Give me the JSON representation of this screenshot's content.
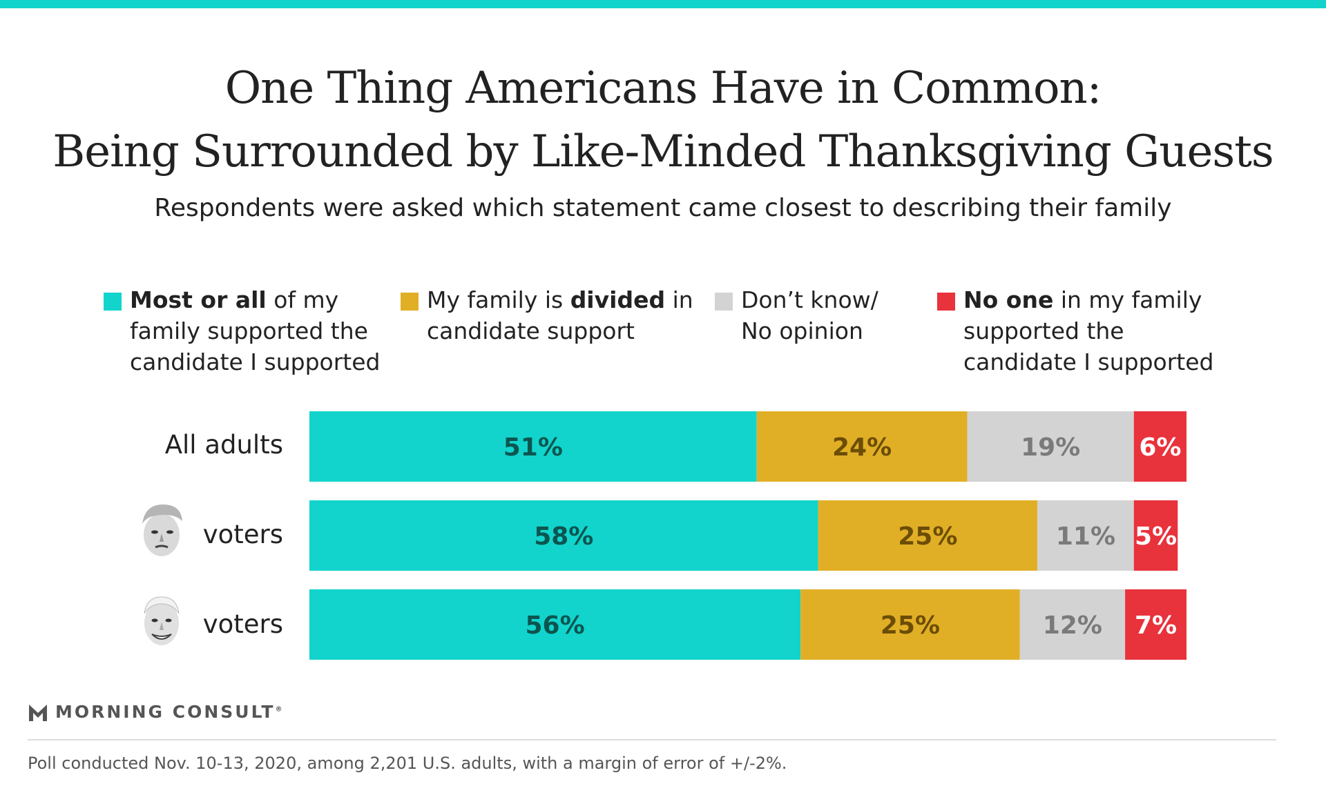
{
  "colors": {
    "accent_bar": "#12d4cc",
    "most_or_all": "#12d4cc",
    "divided": "#e1af26",
    "dont_know": "#d3d3d3",
    "no_one": "#e8323c",
    "label_most_or_all": "#0b5550",
    "label_divided": "#6b4d05",
    "label_dont_know": "#7a7a7a",
    "label_no_one": "#ffffff"
  },
  "header": {
    "title_line1": "One Thing Americans Have in Common:",
    "title_line2": "Being Surrounded by Like-Minded Thanksgiving Guests",
    "subtitle": "Respondents were asked which statement came closest to describing their family"
  },
  "legend": [
    {
      "bold": "Most or all",
      "rest_line1": " of my",
      "line2": "family supported the",
      "line3": "candidate I supported"
    },
    {
      "pre": "My family is ",
      "bold": "divided",
      "rest_line1": " in",
      "line2": "candidate support",
      "line3": ""
    },
    {
      "pre": "Don’t know/",
      "bold": "",
      "rest_line1": "",
      "line2": "No opinion",
      "line3": ""
    },
    {
      "bold": "No one",
      "rest_line1": " in my family",
      "line2": "supported the",
      "line3": "candidate I supported"
    }
  ],
  "rows": [
    {
      "label": "All adults",
      "icon": ""
    },
    {
      "label": "voters",
      "icon": "trump-face-icon"
    },
    {
      "label": "voters",
      "icon": "biden-face-icon"
    }
  ],
  "chart_data": {
    "type": "bar",
    "orientation": "horizontal",
    "stacked": true,
    "normalized_to": 100,
    "categories": [
      "All adults",
      "voters",
      "voters"
    ],
    "series": [
      {
        "name": "Most or all of my family supported the candidate I supported",
        "values": [
          51,
          58,
          56
        ],
        "labels": [
          "51%",
          "58%",
          "56%"
        ]
      },
      {
        "name": "My family is divided in candidate support",
        "values": [
          24,
          25,
          25
        ],
        "labels": [
          "24%",
          "25%",
          "25%"
        ]
      },
      {
        "name": "Don’t know/ No opinion",
        "values": [
          19,
          11,
          12
        ],
        "labels": [
          "19%",
          "11%",
          "12%"
        ]
      },
      {
        "name": "No one in my family supported the candidate I supported",
        "values": [
          6,
          5,
          7
        ],
        "labels": [
          "6%",
          "5%",
          "7%"
        ]
      }
    ],
    "xlim": [
      0,
      100
    ],
    "legend_position": "top",
    "grid": false
  },
  "footer": {
    "logo_text": "MORNING CONSULT",
    "logo_mark": "®",
    "footnote": "Poll conducted Nov. 10-13, 2020, among 2,201 U.S. adults, with a margin of error of +/-2%."
  }
}
